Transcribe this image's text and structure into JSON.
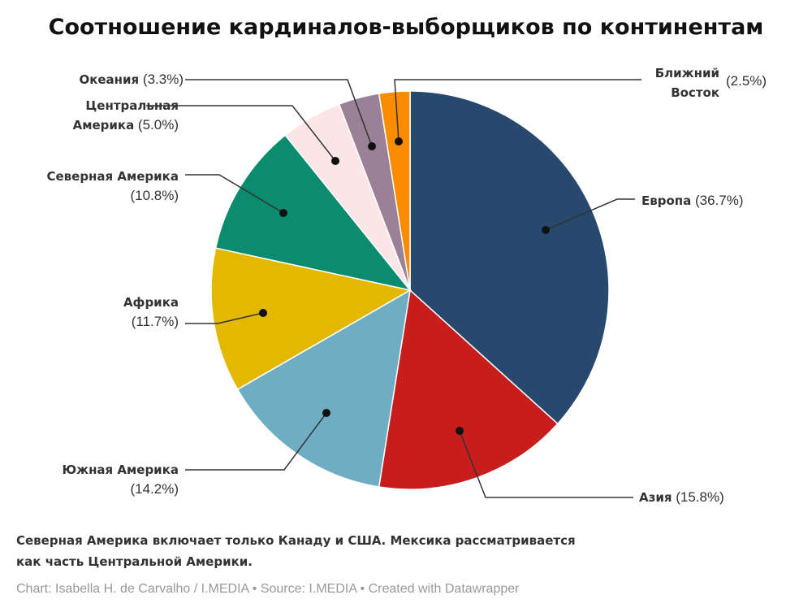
{
  "chart_data": {
    "type": "pie",
    "title": "Соотношение кардиналов-выборщиков по континентам",
    "slices": [
      {
        "name": "Европа",
        "value": 36.7,
        "label": "(36.7%)",
        "color": "#27496d"
      },
      {
        "name": "Азия",
        "value": 15.8,
        "label": "(15.8%)",
        "color": "#c71e1d"
      },
      {
        "name": "Южная Америка",
        "value": 14.2,
        "label": "(14.2%)",
        "color": "#6fadc3"
      },
      {
        "name": "Африка",
        "value": 11.7,
        "label": "(11.7%)",
        "color": "#e2b800"
      },
      {
        "name": "Северная Америка",
        "value": 10.8,
        "label": "(10.8%)",
        "color": "#0b8c6f"
      },
      {
        "name": "Центральная Америка",
        "value": 5.0,
        "label": "(5.0%)",
        "color": "#fbe5e5",
        "name_lines": [
          "Центральная",
          "Америка"
        ]
      },
      {
        "name": "Океания",
        "value": 3.3,
        "label": "(3.3%)",
        "color": "#9b8197"
      },
      {
        "name": "Ближний Восток",
        "value": 2.5,
        "label": "(2.5%)",
        "color": "#fb8c00",
        "name_lines": [
          "Ближний",
          "Восток"
        ]
      }
    ]
  },
  "note": [
    "Северная Америка включает только Канаду и США. Мексика рассматривается",
    "как часть Центральной Америки."
  ],
  "source": "Chart: Isabella H. de Carvalho / I.MEDIA • Source: I.MEDIA • Created with Datawrapper"
}
